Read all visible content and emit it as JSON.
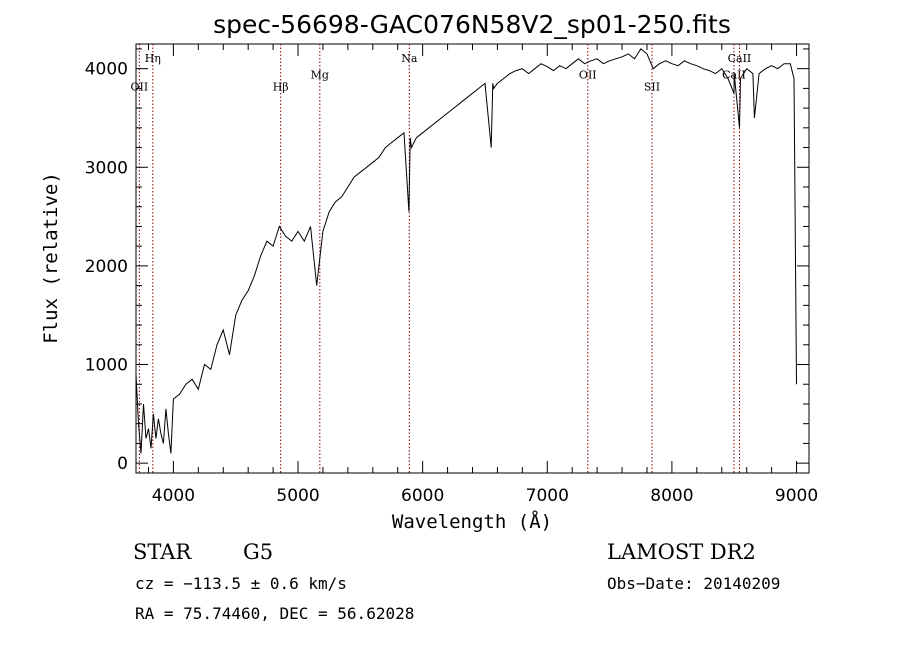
{
  "chart_data": {
    "type": "line",
    "title": "spec-56698-GAC076N58V2_sp01-250.fits",
    "xlabel": "Wavelength (Å)",
    "ylabel": "Flux (relative)",
    "xlim": [
      3700,
      9100
    ],
    "ylim": [
      -100,
      4250
    ],
    "x_ticks": [
      4000,
      5000,
      6000,
      7000,
      8000,
      9000
    ],
    "y_ticks": [
      0,
      1000,
      2000,
      3000,
      4000
    ],
    "x_tick_labels": [
      "4000",
      "5000",
      "6000",
      "7000",
      "8000",
      "9000"
    ],
    "y_tick_labels": [
      "0",
      "1000",
      "2000",
      "3000",
      "4000"
    ],
    "grid": false,
    "line_color": "#000000",
    "marker_color": "#8b0000",
    "series": [
      {
        "x": [
          3700,
          3720,
          3740,
          3760,
          3780,
          3800,
          3820,
          3840,
          3860,
          3880,
          3900,
          3920,
          3940,
          3960,
          3980,
          4000,
          4050,
          4100,
          4150,
          4200,
          4250,
          4300,
          4350,
          4400,
          4450,
          4500,
          4550,
          4600,
          4650,
          4700,
          4750,
          4800,
          4850,
          4900,
          4950,
          5000,
          5050,
          5100,
          5150,
          5200,
          5250,
          5300,
          5350,
          5400,
          5450,
          5500,
          5550,
          5600,
          5650,
          5700,
          5750,
          5800,
          5850,
          5890,
          5900,
          5910,
          5950,
          6000,
          6050,
          6100,
          6150,
          6200,
          6250,
          6300,
          6350,
          6400,
          6450,
          6500,
          6550,
          6563,
          6570,
          6600,
          6650,
          6700,
          6750,
          6800,
          6850,
          6900,
          6950,
          7000,
          7050,
          7100,
          7150,
          7200,
          7250,
          7300,
          7350,
          7400,
          7450,
          7500,
          7550,
          7600,
          7650,
          7700,
          7750,
          7800,
          7850,
          7900,
          7950,
          8000,
          8050,
          8100,
          8150,
          8200,
          8250,
          8300,
          8350,
          8400,
          8450,
          8498,
          8500,
          8542,
          8550,
          8600,
          8650,
          8662,
          8700,
          8750,
          8800,
          8850,
          8900,
          8950,
          8980,
          9000
        ],
        "y": [
          900,
          400,
          100,
          600,
          250,
          350,
          150,
          500,
          250,
          450,
          300,
          200,
          550,
          300,
          100,
          650,
          700,
          800,
          850,
          750,
          1000,
          950,
          1200,
          1350,
          1100,
          1500,
          1650,
          1750,
          1900,
          2100,
          2250,
          2200,
          2400,
          2300,
          2250,
          2350,
          2250,
          2400,
          1800,
          2350,
          2550,
          2650,
          2700,
          2800,
          2900,
          2950,
          3000,
          3050,
          3100,
          3200,
          3250,
          3300,
          3350,
          2550,
          3300,
          3200,
          3300,
          3350,
          3400,
          3450,
          3500,
          3550,
          3600,
          3650,
          3700,
          3750,
          3800,
          3850,
          3200,
          3850,
          3800,
          3850,
          3900,
          3950,
          3980,
          4000,
          3950,
          4000,
          4050,
          4020,
          3980,
          4030,
          4000,
          4050,
          4100,
          4050,
          4080,
          4100,
          4050,
          4080,
          4100,
          4120,
          4150,
          4100,
          4200,
          4150,
          4000,
          4050,
          4080,
          4050,
          4030,
          4080,
          4050,
          4030,
          4000,
          3980,
          3950,
          4000,
          3900,
          3750,
          3950,
          3400,
          3900,
          4000,
          3950,
          3500,
          3950,
          4000,
          4030,
          4000,
          4050,
          4050,
          3900,
          800
        ]
      }
    ],
    "line_markers": [
      {
        "label": "OII",
        "x": 3727,
        "label_y": 3780
      },
      {
        "label": "Hη",
        "x": 3835,
        "label_y": 4070
      },
      {
        "label": "Hβ",
        "x": 4861,
        "label_y": 3780
      },
      {
        "label": "Mg",
        "x": 5175,
        "label_y": 3900
      },
      {
        "label": "Na",
        "x": 5893,
        "label_y": 4070
      },
      {
        "label": "OII",
        "x": 7325,
        "label_y": 3900
      },
      {
        "label": "SII",
        "x": 7840,
        "label_y": 3780
      },
      {
        "label": "CaII",
        "x": 8498,
        "label_y": 3900
      },
      {
        "label": "CaII",
        "x": 8542,
        "label_y": 4070
      }
    ],
    "info": {
      "class": "STAR",
      "subclass": "G5",
      "survey": "LAMOST DR2",
      "cz": "cz = −113.5 ± 0.6 km/s",
      "obs_date": "Obs−Date: 20140209",
      "coords": "RA =  75.74460, DEC =  56.62028"
    }
  }
}
